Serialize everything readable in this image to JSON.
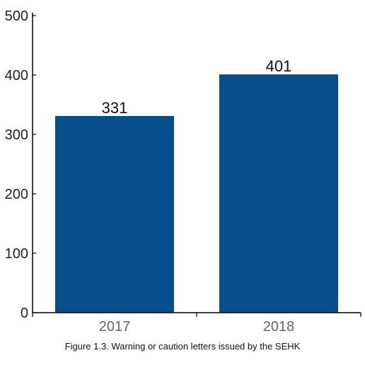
{
  "caption": "Figure 1.3.  Warning or caution letters issued by the SEHK",
  "colors": {
    "bar": "#064f8a",
    "axis": "#000000"
  },
  "chart_data": {
    "type": "bar",
    "categories": [
      "2017",
      "2018"
    ],
    "values": [
      331,
      401
    ],
    "data_labels": [
      "331",
      "401"
    ],
    "ylim": [
      0,
      500
    ],
    "yticks": [
      0,
      100,
      200,
      300,
      400,
      500
    ],
    "ytick_labels": [
      "0",
      "100",
      "200",
      "300",
      "400",
      "500"
    ],
    "grid": false,
    "legend": "none",
    "title": "",
    "xlabel": "",
    "ylabel": ""
  }
}
